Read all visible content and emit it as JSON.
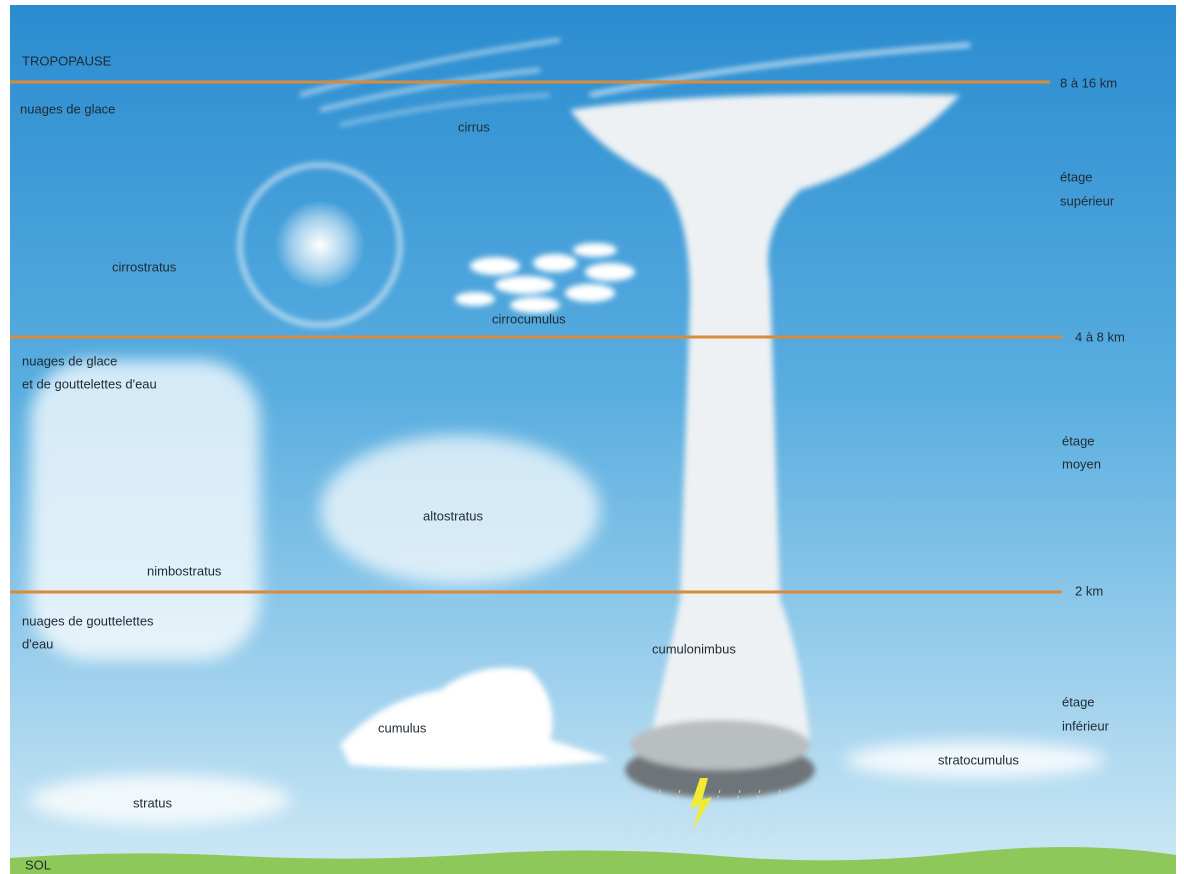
{
  "boundaries": {
    "top": "TROPOPAUSE",
    "bottom": "SOL"
  },
  "levels": [
    "8 à 16 km",
    "4 à 8 km",
    "2 km"
  ],
  "zones": [
    {
      "composition": [
        "nuages de glace"
      ],
      "stage": [
        "étage",
        "supérieur"
      ]
    },
    {
      "composition": [
        "nuages de glace",
        "et de gouttelettes d'eau"
      ],
      "stage": [
        "étage",
        "moyen"
      ]
    },
    {
      "composition": [
        "nuages de gouttelettes",
        "d'eau"
      ],
      "stage": [
        "étage",
        "inférieur"
      ]
    }
  ],
  "clouds": [
    "cirrus",
    "cirrostratus",
    "cirrocumulus",
    "altostratus",
    "nimbostratus",
    "cumulonimbus",
    "cumulus",
    "stratocumulus",
    "stratus"
  ]
}
